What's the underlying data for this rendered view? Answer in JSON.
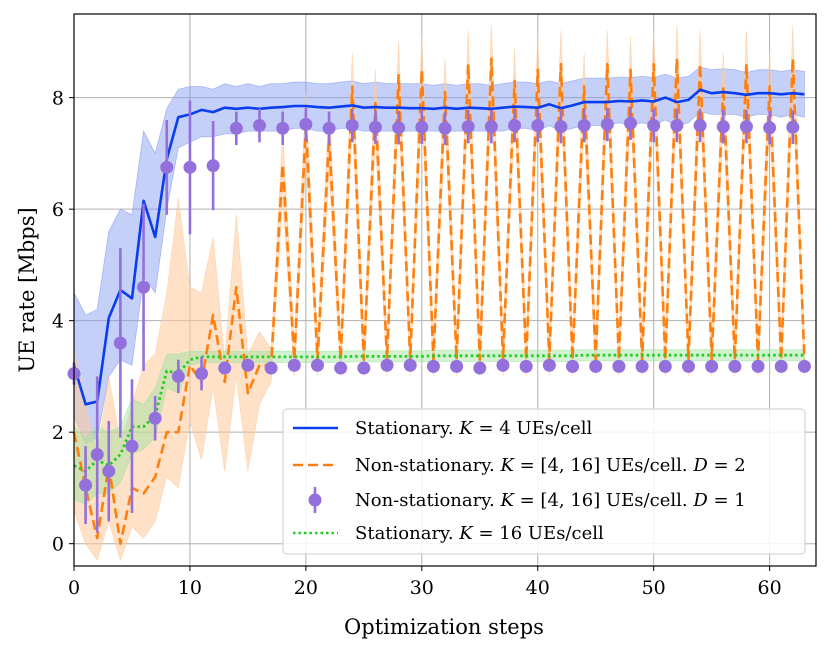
{
  "chart_data": {
    "type": "line",
    "title": "",
    "xlabel": "Optimization steps",
    "ylabel": "UE rate [Mbps]",
    "xlim": [
      0,
      64
    ],
    "ylim": [
      -0.4,
      9.5
    ],
    "xticks": [
      0,
      10,
      20,
      30,
      40,
      50,
      60
    ],
    "yticks": [
      0,
      2,
      4,
      6,
      8
    ],
    "grid": true,
    "legend_position": "lower-right",
    "colors": {
      "blue": "#0a3cf0",
      "blue_band": "#7f96f0",
      "orange": "#ff7f0e",
      "orange_band": "#ffc99a",
      "purple": "#9370db",
      "green": "#22cc22",
      "green_band": "#9be39b",
      "grid": "#b0b0b0"
    },
    "series": [
      {
        "name": "Stationary. K = 4 UEs/cell",
        "style": "solid",
        "color": "blue",
        "x": [
          0,
          1,
          2,
          3,
          4,
          5,
          6,
          7,
          8,
          9,
          10,
          11,
          12,
          13,
          14,
          15,
          16,
          17,
          18,
          19,
          20,
          21,
          22,
          23,
          24,
          25,
          26,
          27,
          28,
          29,
          30,
          31,
          32,
          33,
          34,
          35,
          36,
          37,
          38,
          39,
          40,
          41,
          42,
          43,
          44,
          45,
          46,
          47,
          48,
          49,
          50,
          51,
          52,
          53,
          54,
          55,
          56,
          57,
          58,
          59,
          60,
          61,
          62,
          63
        ],
        "y": [
          3.2,
          2.5,
          2.55,
          4.05,
          4.55,
          4.4,
          6.15,
          5.5,
          6.9,
          7.65,
          7.7,
          7.78,
          7.74,
          7.82,
          7.8,
          7.82,
          7.8,
          7.82,
          7.83,
          7.85,
          7.85,
          7.83,
          7.82,
          7.84,
          7.86,
          7.82,
          7.83,
          7.82,
          7.82,
          7.81,
          7.81,
          7.8,
          7.82,
          7.8,
          7.82,
          7.81,
          7.8,
          7.82,
          7.84,
          7.83,
          7.82,
          7.88,
          7.81,
          7.86,
          7.92,
          7.92,
          7.92,
          7.94,
          7.93,
          7.95,
          7.93,
          8.0,
          7.92,
          7.96,
          8.14,
          8.08,
          8.1,
          8.08,
          8.05,
          8.08,
          8.08,
          8.06,
          8.08,
          8.06
        ],
        "band_low": [
          2.3,
          1.8,
          1.9,
          3.0,
          3.3,
          3.2,
          4.8,
          4.5,
          6.0,
          7.1,
          7.2,
          7.3,
          7.3,
          7.35,
          7.35,
          7.4,
          7.4,
          7.4,
          7.4,
          7.45,
          7.45,
          7.4,
          7.4,
          7.45,
          7.45,
          7.4,
          7.4,
          7.4,
          7.4,
          7.4,
          7.4,
          7.4,
          7.4,
          7.4,
          7.4,
          7.4,
          7.4,
          7.4,
          7.45,
          7.45,
          7.4,
          7.5,
          7.4,
          7.45,
          7.5,
          7.5,
          7.5,
          7.55,
          7.5,
          7.55,
          7.5,
          7.6,
          7.5,
          7.55,
          7.75,
          7.7,
          7.7,
          7.7,
          7.65,
          7.7,
          7.7,
          7.65,
          7.7,
          7.65
        ],
        "band_high": [
          4.5,
          4.1,
          4.2,
          5.6,
          6.0,
          5.9,
          7.4,
          7.0,
          7.8,
          8.15,
          8.2,
          8.2,
          8.15,
          8.25,
          8.2,
          8.25,
          8.2,
          8.25,
          8.25,
          8.28,
          8.28,
          8.25,
          8.25,
          8.28,
          8.3,
          8.25,
          8.28,
          8.25,
          8.25,
          8.25,
          8.25,
          8.22,
          8.25,
          8.22,
          8.25,
          8.25,
          8.22,
          8.25,
          8.28,
          8.28,
          8.25,
          8.3,
          8.25,
          8.3,
          8.35,
          8.35,
          8.35,
          8.37,
          8.36,
          8.38,
          8.36,
          8.42,
          8.35,
          8.38,
          8.55,
          8.5,
          8.52,
          8.5,
          8.45,
          8.5,
          8.5,
          8.47,
          8.5,
          8.47
        ]
      },
      {
        "name": "Non-stationary. K = [4, 16] UEs/cell. D = 2",
        "style": "dashed",
        "color": "orange",
        "x": [
          0,
          1,
          2,
          3,
          4,
          5,
          6,
          7,
          8,
          9,
          10,
          11,
          12,
          13,
          14,
          15,
          16,
          17,
          18,
          19,
          20,
          21,
          22,
          23,
          24,
          25,
          26,
          27,
          28,
          29,
          30,
          31,
          32,
          33,
          34,
          35,
          36,
          37,
          38,
          39,
          40,
          41,
          42,
          43,
          44,
          45,
          46,
          47,
          48,
          49,
          50,
          51,
          52,
          53,
          54,
          55,
          56,
          57,
          58,
          59,
          60,
          61,
          62,
          63
        ],
        "y": [
          2.0,
          1.0,
          0.1,
          1.4,
          0.0,
          1.0,
          0.9,
          1.2,
          2.0,
          2.0,
          3.2,
          2.9,
          4.1,
          2.9,
          4.6,
          2.7,
          3.2,
          3.2,
          6.8,
          3.3,
          7.5,
          3.3,
          7.3,
          3.3,
          8.2,
          3.3,
          7.9,
          3.3,
          8.4,
          3.3,
          8.5,
          3.3,
          8.1,
          3.3,
          8.6,
          3.3,
          8.7,
          3.3,
          8.3,
          3.3,
          8.5,
          3.3,
          8.6,
          3.3,
          8.2,
          3.3,
          8.6,
          3.3,
          8.5,
          3.3,
          8.6,
          3.3,
          8.7,
          3.3,
          8.6,
          3.3,
          8.2,
          3.3,
          8.6,
          3.3,
          8.2,
          3.3,
          8.7,
          3.3
        ],
        "band_low": [
          0.6,
          0.0,
          -0.3,
          0.4,
          -0.3,
          0.3,
          0.1,
          0.4,
          1.2,
          1.0,
          2.2,
          1.5,
          2.8,
          1.3,
          3.0,
          1.3,
          2.5,
          2.9,
          6.2,
          3.0,
          6.9,
          3.0,
          6.7,
          3.0,
          7.6,
          3.0,
          7.3,
          3.0,
          7.8,
          3.0,
          7.9,
          3.0,
          7.5,
          3.0,
          8.0,
          3.0,
          8.1,
          3.0,
          7.7,
          3.0,
          7.9,
          3.0,
          8.0,
          3.0,
          7.6,
          3.0,
          8.0,
          3.0,
          7.9,
          3.0,
          8.0,
          3.0,
          8.1,
          3.0,
          8.0,
          3.0,
          7.6,
          3.0,
          8.0,
          3.0,
          7.6,
          3.0,
          8.1,
          3.0
        ],
        "band_high": [
          3.5,
          2.5,
          1.6,
          3.0,
          1.8,
          2.5,
          3.2,
          3.4,
          4.5,
          6.2,
          4.6,
          4.5,
          5.5,
          3.3,
          5.9,
          3.4,
          3.8,
          3.5,
          7.4,
          3.6,
          8.1,
          3.6,
          7.9,
          3.6,
          8.8,
          3.6,
          8.5,
          3.6,
          9.0,
          3.6,
          9.1,
          3.6,
          8.7,
          3.6,
          9.2,
          3.6,
          9.3,
          3.6,
          8.9,
          3.6,
          9.1,
          3.6,
          9.2,
          3.6,
          8.8,
          3.6,
          9.2,
          3.6,
          9.1,
          3.6,
          9.2,
          3.6,
          9.3,
          3.6,
          9.2,
          3.6,
          8.8,
          3.6,
          9.2,
          3.6,
          8.8,
          3.6,
          9.3,
          3.6
        ]
      },
      {
        "name": "Non-stationary. K = [4, 16] UEs/cell. D = 1",
        "style": "errorbar",
        "color": "purple",
        "x": [
          0,
          1,
          2,
          3,
          4,
          5,
          6,
          7,
          8,
          9,
          10,
          11,
          12,
          13,
          14,
          15,
          16,
          17,
          18,
          19,
          20,
          21,
          22,
          23,
          24,
          25,
          26,
          27,
          28,
          29,
          30,
          31,
          32,
          33,
          34,
          35,
          36,
          37,
          38,
          39,
          40,
          41,
          42,
          43,
          44,
          45,
          46,
          47,
          48,
          49,
          50,
          51,
          52,
          53,
          54,
          55,
          56,
          57,
          58,
          59,
          60,
          61,
          62,
          63
        ],
        "y": [
          3.05,
          1.05,
          1.6,
          1.3,
          3.6,
          1.75,
          4.6,
          2.25,
          6.75,
          3.0,
          6.75,
          3.05,
          6.78,
          3.15,
          7.45,
          3.2,
          7.5,
          3.15,
          7.45,
          3.2,
          7.52,
          3.2,
          7.45,
          3.15,
          7.5,
          3.15,
          7.47,
          3.2,
          7.46,
          3.2,
          7.47,
          3.18,
          7.45,
          3.18,
          7.48,
          3.15,
          7.48,
          3.2,
          7.5,
          3.18,
          7.5,
          3.2,
          7.48,
          3.18,
          7.5,
          3.18,
          7.52,
          3.18,
          7.54,
          3.18,
          7.5,
          3.18,
          7.5,
          3.18,
          7.5,
          3.18,
          7.48,
          3.18,
          7.48,
          3.18,
          7.46,
          3.18,
          7.47,
          3.18
        ],
        "err": [
          0.2,
          0.7,
          1.4,
          0.9,
          1.7,
          1.2,
          1.5,
          0.4,
          0.85,
          0.3,
          1.2,
          0.3,
          0.8,
          0.1,
          0.3,
          0.1,
          0.3,
          0.1,
          0.3,
          0.1,
          0.3,
          0.1,
          0.3,
          0.1,
          0.3,
          0.1,
          0.3,
          0.1,
          0.3,
          0.1,
          0.3,
          0.1,
          0.3,
          0.1,
          0.3,
          0.1,
          0.3,
          0.1,
          0.3,
          0.1,
          0.3,
          0.1,
          0.3,
          0.1,
          0.3,
          0.1,
          0.3,
          0.1,
          0.3,
          0.1,
          0.3,
          0.1,
          0.3,
          0.1,
          0.3,
          0.1,
          0.3,
          0.1,
          0.3,
          0.1,
          0.3,
          0.1,
          0.3,
          0.1
        ]
      },
      {
        "name": "Stationary. K = 16 UEs/cell",
        "style": "dotted",
        "color": "green",
        "x": [
          0,
          1,
          2,
          3,
          4,
          5,
          6,
          7,
          8,
          9,
          10,
          11,
          12,
          13,
          14,
          15,
          16,
          17,
          18,
          19,
          20,
          21,
          22,
          23,
          24,
          25,
          26,
          27,
          28,
          29,
          30,
          31,
          32,
          33,
          34,
          35,
          36,
          37,
          38,
          39,
          40,
          41,
          42,
          43,
          44,
          45,
          46,
          47,
          48,
          49,
          50,
          51,
          52,
          53,
          54,
          55,
          56,
          57,
          58,
          59,
          60,
          61,
          62,
          63
        ],
        "y": [
          1.4,
          1.3,
          1.5,
          1.4,
          1.6,
          2.1,
          2.1,
          2.3,
          3.1,
          3.05,
          3.3,
          3.35,
          3.35,
          3.35,
          3.35,
          3.35,
          3.35,
          3.35,
          3.35,
          3.35,
          3.35,
          3.35,
          3.35,
          3.35,
          3.36,
          3.36,
          3.36,
          3.36,
          3.36,
          3.36,
          3.36,
          3.37,
          3.37,
          3.37,
          3.37,
          3.37,
          3.37,
          3.37,
          3.37,
          3.37,
          3.37,
          3.37,
          3.37,
          3.37,
          3.38,
          3.38,
          3.38,
          3.38,
          3.38,
          3.38,
          3.38,
          3.38,
          3.38,
          3.38,
          3.38,
          3.38,
          3.38,
          3.38,
          3.38,
          3.38,
          3.38,
          3.38,
          3.38,
          3.38
        ],
        "band_low": [
          0.8,
          0.7,
          0.9,
          0.9,
          1.1,
          1.6,
          1.7,
          1.9,
          2.8,
          2.7,
          3.2,
          3.25,
          3.25,
          3.25,
          3.25,
          3.25,
          3.25,
          3.25,
          3.25,
          3.25,
          3.25,
          3.25,
          3.25,
          3.25,
          3.26,
          3.26,
          3.26,
          3.26,
          3.26,
          3.26,
          3.26,
          3.27,
          3.27,
          3.27,
          3.27,
          3.27,
          3.27,
          3.27,
          3.27,
          3.27,
          3.27,
          3.27,
          3.27,
          3.27,
          3.28,
          3.28,
          3.28,
          3.28,
          3.28,
          3.28,
          3.28,
          3.28,
          3.28,
          3.28,
          3.28,
          3.28,
          3.28,
          3.28,
          3.28,
          3.28,
          3.28,
          3.28,
          3.28,
          3.28
        ],
        "band_high": [
          2.1,
          1.9,
          2.1,
          2.0,
          2.1,
          2.6,
          2.5,
          2.8,
          3.4,
          3.4,
          3.45,
          3.45,
          3.45,
          3.45,
          3.45,
          3.45,
          3.45,
          3.45,
          3.45,
          3.45,
          3.45,
          3.45,
          3.45,
          3.45,
          3.46,
          3.46,
          3.46,
          3.46,
          3.46,
          3.46,
          3.46,
          3.47,
          3.47,
          3.47,
          3.47,
          3.47,
          3.47,
          3.47,
          3.47,
          3.47,
          3.47,
          3.47,
          3.47,
          3.47,
          3.48,
          3.48,
          3.48,
          3.48,
          3.48,
          3.48,
          3.48,
          3.48,
          3.48,
          3.48,
          3.48,
          3.48,
          3.48,
          3.48,
          3.48,
          3.48,
          3.48,
          3.48,
          3.48,
          3.48
        ]
      }
    ],
    "legend": [
      {
        "prefix": "Stationary. ",
        "k": "K",
        "eq": " = 4 UEs/cell",
        "suffix": "",
        "d": "",
        "dval": ""
      },
      {
        "prefix": "Non-stationary. ",
        "k": "K",
        "eq": " = [4, 16] UEs/cell. ",
        "suffix": "",
        "d": "D",
        "dval": " = 2"
      },
      {
        "prefix": "Non-stationary. ",
        "k": "K",
        "eq": " = [4, 16] UEs/cell. ",
        "suffix": "",
        "d": "D",
        "dval": " = 1"
      },
      {
        "prefix": "Stationary. ",
        "k": "K",
        "eq": " = 16 UEs/cell",
        "suffix": "",
        "d": "",
        "dval": ""
      }
    ]
  }
}
